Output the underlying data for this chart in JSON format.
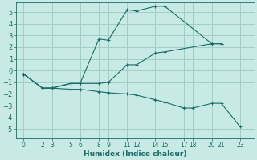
{
  "xlabel": "Humidex (Indice chaleur)",
  "background_color": "#c8eae4",
  "grid_color": "#a0cfc8",
  "line_color": "#1a6b6b",
  "xticks": [
    0,
    2,
    3,
    5,
    6,
    8,
    9,
    11,
    12,
    14,
    15,
    17,
    18,
    20,
    21,
    23
  ],
  "yticks": [
    -5,
    -4,
    -3,
    -2,
    -1,
    0,
    1,
    2,
    3,
    4,
    5
  ],
  "ylim": [
    -5.8,
    5.8
  ],
  "xlim": [
    -0.8,
    24.5
  ],
  "lines": [
    {
      "x": [
        0,
        2,
        3,
        5,
        6,
        8,
        9,
        11,
        12,
        14,
        15,
        20,
        21
      ],
      "y": [
        -0.3,
        -1.5,
        -1.5,
        -1.1,
        -1.1,
        -1.1,
        -1.0,
        0.5,
        0.5,
        1.5,
        1.6,
        2.3,
        2.3
      ]
    },
    {
      "x": [
        0,
        2,
        3,
        5,
        6,
        8,
        9,
        11,
        12,
        14,
        15,
        20,
        21
      ],
      "y": [
        -0.3,
        -1.5,
        -1.5,
        -1.1,
        -1.1,
        2.7,
        2.6,
        5.2,
        5.1,
        5.5,
        5.5,
        2.3,
        2.3
      ]
    },
    {
      "x": [
        0,
        2,
        3,
        5,
        6,
        8,
        9,
        11,
        12,
        14,
        15,
        17,
        18,
        20,
        21,
        23
      ],
      "y": [
        -0.3,
        -1.5,
        -1.5,
        -1.6,
        -1.6,
        -1.8,
        -1.9,
        -2.0,
        -2.1,
        -2.5,
        -2.7,
        -3.2,
        -3.2,
        -2.8,
        -2.8,
        -4.8
      ]
    }
  ]
}
